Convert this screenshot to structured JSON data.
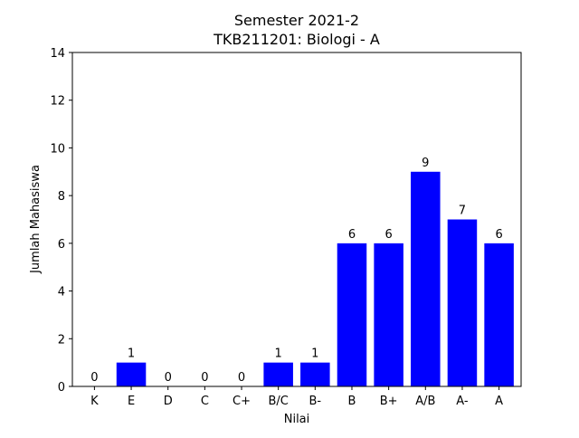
{
  "chart_data": {
    "type": "bar",
    "title": "Semester 2021-2",
    "subtitle": "TKB211201: Biologi - A",
    "xlabel": "Nilai",
    "ylabel": "Jumlah Mahasiswa",
    "categories": [
      "K",
      "E",
      "D",
      "C",
      "C+",
      "B/C",
      "B-",
      "B",
      "B+",
      "A/B",
      "A-",
      "A"
    ],
    "values": [
      0,
      1,
      0,
      0,
      0,
      1,
      1,
      6,
      6,
      9,
      7,
      6
    ],
    "ylim": [
      0,
      14
    ],
    "yticks": [
      0,
      2,
      4,
      6,
      8,
      10,
      12,
      14
    ],
    "bar_color": "#0000ff",
    "grid": false
  }
}
